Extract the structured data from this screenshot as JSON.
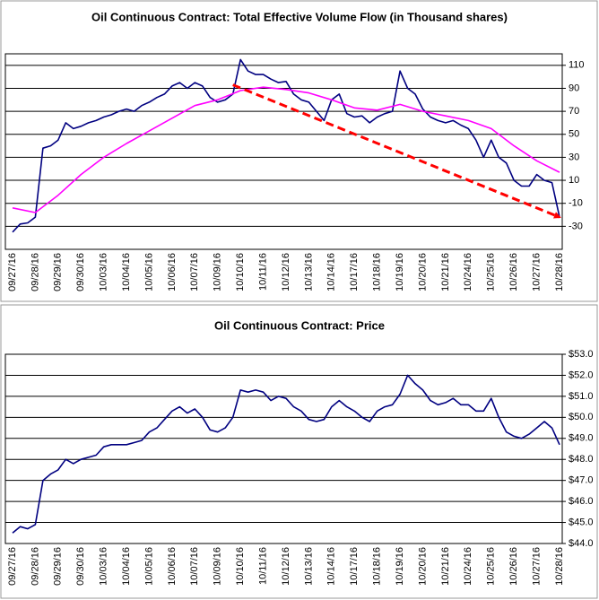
{
  "chart_data": [
    {
      "type": "line",
      "title": "Oil Continuous Contract: Total Effective Volume Flow (in Thousand shares)",
      "categories": [
        "09/27/16",
        null,
        null,
        "09/28/16",
        null,
        null,
        "09/29/16",
        null,
        null,
        "09/30/16",
        null,
        null,
        "10/03/16",
        null,
        null,
        "10/04/16",
        null,
        null,
        "10/05/16",
        null,
        null,
        "10/06/16",
        null,
        null,
        "10/07/16",
        null,
        null,
        "10/09/16",
        null,
        null,
        "10/10/16",
        null,
        null,
        "10/11/16",
        null,
        null,
        "10/12/16",
        null,
        null,
        "10/13/16",
        null,
        null,
        "10/14/16",
        null,
        null,
        "10/17/16",
        null,
        null,
        "10/18/16",
        null,
        null,
        "10/19/16",
        null,
        null,
        "10/20/16",
        null,
        null,
        "10/21/16",
        null,
        null,
        "10/24/16",
        null,
        null,
        "10/25/16",
        null,
        null,
        "10/26/16",
        null,
        null,
        "10/27/16",
        null,
        null,
        "10/28/16"
      ],
      "series": [
        {
          "color": "#000080",
          "values": [
            -35,
            -28,
            -27,
            -22,
            38,
            40,
            45,
            60,
            55,
            57,
            60,
            62,
            65,
            67,
            70,
            72,
            70,
            75,
            78,
            82,
            85,
            92,
            95,
            90,
            95,
            92,
            82,
            78,
            80,
            85,
            115,
            105,
            102,
            102,
            98,
            95,
            96,
            85,
            80,
            78,
            70,
            62,
            80,
            85,
            68,
            65,
            66,
            60,
            65,
            68,
            70,
            105,
            90,
            85,
            72,
            65,
            62,
            60,
            62,
            58,
            55,
            45,
            30,
            45,
            30,
            25,
            10,
            5,
            5,
            15,
            10,
            8,
            -22
          ]
        },
        {
          "color": "#ff00ff",
          "x": [
            0,
            3,
            6,
            9,
            12,
            15,
            18,
            21,
            24,
            27,
            30,
            33,
            36,
            39,
            42,
            45,
            48,
            51,
            54,
            57,
            60,
            63,
            66,
            69,
            72
          ],
          "values": [
            -14,
            -18,
            -3,
            15,
            30,
            42,
            53,
            64,
            75,
            80,
            88,
            91,
            89,
            86,
            80,
            73,
            71,
            76,
            70,
            66,
            62,
            55,
            40,
            27,
            17
          ]
        },
        {
          "color": "#ff0000",
          "style": "dashed",
          "arrow": true,
          "x": [
            29,
            72
          ],
          "values": [
            93,
            -22
          ]
        }
      ],
      "ylim": [
        -50,
        120
      ],
      "yticks": [
        110,
        90,
        70,
        50,
        30,
        10,
        -10,
        -30
      ],
      "grid": true
    },
    {
      "type": "line",
      "title": "Oil Continuous Contract: Price",
      "categories": [
        "09/27/16",
        null,
        null,
        "09/28/16",
        null,
        null,
        "09/29/16",
        null,
        null,
        "09/30/16",
        null,
        null,
        "10/03/16",
        null,
        null,
        "10/04/16",
        null,
        null,
        "10/05/16",
        null,
        null,
        "10/06/16",
        null,
        null,
        "10/07/16",
        null,
        null,
        "10/09/16",
        null,
        null,
        "10/10/16",
        null,
        null,
        "10/11/16",
        null,
        null,
        "10/12/16",
        null,
        null,
        "10/13/16",
        null,
        null,
        "10/14/16",
        null,
        null,
        "10/17/16",
        null,
        null,
        "10/18/16",
        null,
        null,
        "10/19/16",
        null,
        null,
        "10/20/16",
        null,
        null,
        "10/21/16",
        null,
        null,
        "10/24/16",
        null,
        null,
        "10/25/16",
        null,
        null,
        "10/26/16",
        null,
        null,
        "10/27/16",
        null,
        null,
        "10/28/16"
      ],
      "series": [
        {
          "color": "#000080",
          "values": [
            44.5,
            44.8,
            44.7,
            44.9,
            47.0,
            47.3,
            47.5,
            48.0,
            47.8,
            48.0,
            48.1,
            48.2,
            48.6,
            48.7,
            48.7,
            48.7,
            48.8,
            48.9,
            49.3,
            49.5,
            49.9,
            50.3,
            50.5,
            50.2,
            50.4,
            50.0,
            49.4,
            49.3,
            49.5,
            50.0,
            51.3,
            51.2,
            51.3,
            51.2,
            50.8,
            51.0,
            50.9,
            50.5,
            50.3,
            49.9,
            49.8,
            49.9,
            50.5,
            50.8,
            50.5,
            50.3,
            50.0,
            49.8,
            50.3,
            50.5,
            50.6,
            51.1,
            52.0,
            51.6,
            51.3,
            50.8,
            50.6,
            50.7,
            50.9,
            50.6,
            50.6,
            50.3,
            50.3,
            50.9,
            50.0,
            49.3,
            49.1,
            49.0,
            49.2,
            49.5,
            49.8,
            49.5,
            48.7
          ]
        }
      ],
      "ylim": [
        44,
        53
      ],
      "yticks": [
        {
          "value": 53,
          "label": "$53.0"
        },
        {
          "value": 52,
          "label": "$52.0"
        },
        {
          "value": 51,
          "label": "$51.0"
        },
        {
          "value": 50,
          "label": "$50.0"
        },
        {
          "value": 49,
          "label": "$49.0"
        },
        {
          "value": 48,
          "label": "$48.0"
        },
        {
          "value": 47,
          "label": "$47.0"
        },
        {
          "value": 46,
          "label": "$46.0"
        },
        {
          "value": 45,
          "label": "$45.0"
        },
        {
          "value": 44,
          "label": "$44.0"
        }
      ],
      "grid": true
    }
  ]
}
